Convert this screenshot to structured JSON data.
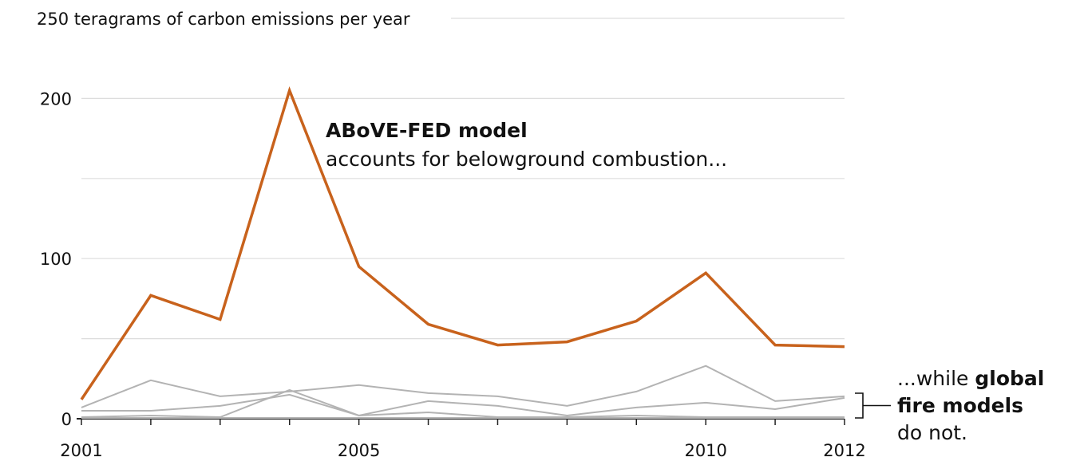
{
  "chart_data": {
    "type": "line",
    "title": "",
    "ylabel": "teragrams of carbon emissions per year",
    "ylim": [
      0,
      250
    ],
    "yticks": [
      {
        "value": 0,
        "label": "0"
      },
      {
        "value": 100,
        "label": "100"
      },
      {
        "value": 200,
        "label": "200"
      },
      {
        "value": 250,
        "label": "250"
      }
    ],
    "ygrid_values": [
      0,
      50,
      100,
      150,
      200,
      250
    ],
    "xlim": [
      2001,
      2012
    ],
    "x": [
      2001,
      2002,
      2003,
      2004,
      2005,
      2006,
      2007,
      2008,
      2009,
      2010,
      2011,
      2012
    ],
    "xtick_labels": [
      {
        "value": 2001,
        "label": "2001"
      },
      {
        "value": 2005,
        "label": "2005"
      },
      {
        "value": 2010,
        "label": "2010"
      },
      {
        "value": 2012,
        "label": "2012"
      }
    ],
    "grid": true,
    "series": [
      {
        "key": "above",
        "color": "#c8621c",
        "emphasis": true,
        "values": [
          12,
          77,
          62,
          205,
          95,
          59,
          46,
          48,
          61,
          91,
          46,
          45
        ]
      },
      {
        "key": "global-1",
        "color": "#b3b3b3",
        "emphasis": false,
        "values": [
          7,
          24,
          14,
          17,
          21,
          16,
          14,
          8,
          17,
          33,
          11,
          14
        ]
      },
      {
        "key": "global-2",
        "color": "#b3b3b3",
        "emphasis": false,
        "values": [
          5,
          5,
          8,
          15,
          2,
          11,
          8,
          2,
          7,
          10,
          6,
          13
        ]
      },
      {
        "key": "global-3",
        "color": "#b3b3b3",
        "emphasis": false,
        "values": [
          1,
          2,
          1,
          18,
          2,
          4,
          1,
          1,
          2,
          1,
          1,
          1
        ]
      },
      {
        "key": "global-4",
        "color": "#b3b3b3",
        "emphasis": false,
        "values": [
          0.5,
          0.5,
          0.5,
          0.5,
          0.5,
          0.5,
          0.5,
          0.5,
          0.5,
          0.5,
          0.5,
          0.5
        ]
      }
    ],
    "annotations": {
      "above_bold": "ABoVE-FED model",
      "above_text": "accounts for belowground combustion...",
      "global_prefix": "...while ",
      "global_bold_1": "global",
      "global_bold_2": "fire models",
      "global_text": "do not."
    },
    "colors": {
      "highlight": "#c8621c",
      "muted": "#b3b3b3",
      "grid": "#dddddd"
    }
  }
}
